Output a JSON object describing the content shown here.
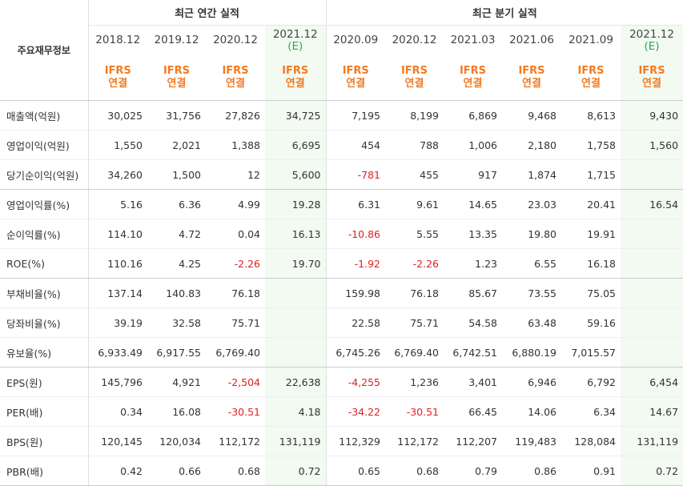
{
  "header": {
    "corner_label": "주요재무정보",
    "annual_caption": "최근 연간 실적",
    "quarter_caption": "최근 분기 실적",
    "periods": [
      {
        "date": "2018.12",
        "estimate": "",
        "standard": "IFRS",
        "basis": "연결"
      },
      {
        "date": "2019.12",
        "estimate": "",
        "standard": "IFRS",
        "basis": "연결"
      },
      {
        "date": "2020.12",
        "estimate": "",
        "standard": "IFRS",
        "basis": "연결"
      },
      {
        "date": "2021.12",
        "estimate": "(E)",
        "standard": "IFRS",
        "basis": "연결"
      },
      {
        "date": "2020.09",
        "estimate": "",
        "standard": "IFRS",
        "basis": "연결"
      },
      {
        "date": "2020.12",
        "estimate": "",
        "standard": "IFRS",
        "basis": "연결"
      },
      {
        "date": "2021.03",
        "estimate": "",
        "standard": "IFRS",
        "basis": "연결"
      },
      {
        "date": "2021.06",
        "estimate": "",
        "standard": "IFRS",
        "basis": "연결"
      },
      {
        "date": "2021.09",
        "estimate": "",
        "standard": "IFRS",
        "basis": "연결"
      },
      {
        "date": "2021.12",
        "estimate": "(E)",
        "standard": "IFRS",
        "basis": "연결"
      }
    ]
  },
  "rows": [
    {
      "label": "매출액(억원)",
      "values": [
        "30,025",
        "31,756",
        "27,826",
        "34,725",
        "7,195",
        "8,199",
        "6,869",
        "9,468",
        "8,613",
        "9,430"
      ]
    },
    {
      "label": "영업이익(억원)",
      "values": [
        "1,550",
        "2,021",
        "1,388",
        "6,695",
        "454",
        "788",
        "1,006",
        "2,180",
        "1,758",
        "1,560"
      ]
    },
    {
      "label": "당기순이익(억원)",
      "values": [
        "34,260",
        "1,500",
        "12",
        "5,600",
        "-781",
        "455",
        "917",
        "1,874",
        "1,715",
        ""
      ]
    },
    {
      "label": "영업이익률(%)",
      "values": [
        "5.16",
        "6.36",
        "4.99",
        "19.28",
        "6.31",
        "9.61",
        "14.65",
        "23.03",
        "20.41",
        "16.54"
      ]
    },
    {
      "label": "순이익률(%)",
      "values": [
        "114.10",
        "4.72",
        "0.04",
        "16.13",
        "-10.86",
        "5.55",
        "13.35",
        "19.80",
        "19.91",
        ""
      ]
    },
    {
      "label": "ROE(%)",
      "values": [
        "110.16",
        "4.25",
        "-2.26",
        "19.70",
        "-1.92",
        "-2.26",
        "1.23",
        "6.55",
        "16.18",
        ""
      ]
    },
    {
      "label": "부채비율(%)",
      "values": [
        "137.14",
        "140.83",
        "76.18",
        "",
        "159.98",
        "76.18",
        "85.67",
        "73.55",
        "75.05",
        ""
      ]
    },
    {
      "label": "당좌비율(%)",
      "values": [
        "39.19",
        "32.58",
        "75.71",
        "",
        "22.58",
        "75.71",
        "54.58",
        "63.48",
        "59.16",
        ""
      ]
    },
    {
      "label": "유보율(%)",
      "values": [
        "6,933.49",
        "6,917.55",
        "6,769.40",
        "",
        "6,745.26",
        "6,769.40",
        "6,742.51",
        "6,880.19",
        "7,015.57",
        ""
      ]
    },
    {
      "label": "EPS(원)",
      "values": [
        "145,796",
        "4,921",
        "-2,504",
        "22,638",
        "-4,255",
        "1,236",
        "3,401",
        "6,946",
        "6,792",
        "6,454"
      ]
    },
    {
      "label": "PER(배)",
      "values": [
        "0.34",
        "16.08",
        "-30.51",
        "4.18",
        "-34.22",
        "-30.51",
        "66.45",
        "14.06",
        "6.34",
        "14.67"
      ]
    },
    {
      "label": "BPS(원)",
      "values": [
        "120,145",
        "120,034",
        "112,172",
        "131,119",
        "112,329",
        "112,172",
        "112,207",
        "119,483",
        "128,084",
        "131,119"
      ]
    },
    {
      "label": "PBR(배)",
      "values": [
        "0.42",
        "0.66",
        "0.68",
        "0.72",
        "0.65",
        "0.68",
        "0.79",
        "0.86",
        "0.91",
        "0.72"
      ]
    }
  ],
  "colors": {
    "standard_label": "#f47a20",
    "estimate_marker": "#2ea84f",
    "estimate_column_bg": "#f2faf1",
    "negative_value": "#e02020"
  }
}
